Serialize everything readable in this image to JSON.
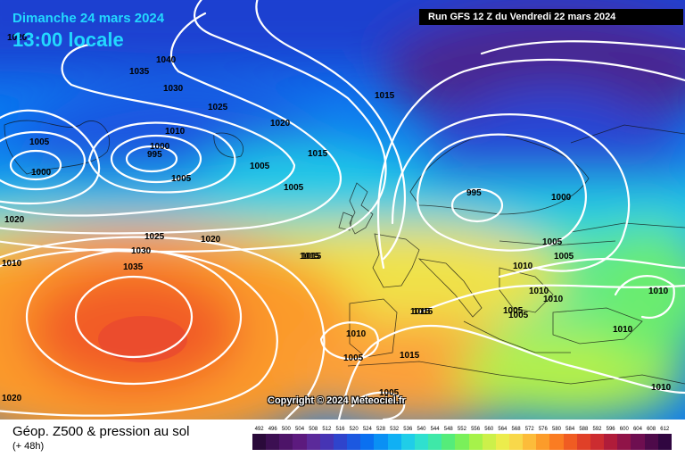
{
  "header": {
    "date": "Dimanche 24 mars 2024",
    "time": "13:00 locale",
    "run": "Run GFS 12 Z du Vendredi 22 mars 2024"
  },
  "copyright": "Copyright © 2024 Meteociel.fr",
  "footer": {
    "title": "Géop. Z500 & pression au sol",
    "subtitle": "(+ 48h)"
  },
  "scale": {
    "labels": [
      "492",
      "496",
      "500",
      "504",
      "508",
      "512",
      "516",
      "520",
      "524",
      "528",
      "532",
      "536",
      "540",
      "544",
      "548",
      "552",
      "556",
      "560",
      "564",
      "568",
      "572",
      "576",
      "580",
      "584",
      "588",
      "592",
      "596",
      "600",
      "604",
      "608",
      "612"
    ],
    "colors": [
      "#2a0a3a",
      "#3c0f52",
      "#4d1468",
      "#5c1a7e",
      "#5b2a9a",
      "#4634b4",
      "#2f44cc",
      "#1c58e0",
      "#0a70f0",
      "#0a90f4",
      "#10b0f4",
      "#20cde8",
      "#2fe0cf",
      "#3fe8a8",
      "#55ec7a",
      "#7af05a",
      "#a6f24a",
      "#ccf04a",
      "#ecec4c",
      "#f8d84a",
      "#fcbc3a",
      "#fc9c2a",
      "#fa7c22",
      "#f05c22",
      "#e04028",
      "#cc2c30",
      "#b01c3a",
      "#901448",
      "#6e0e50",
      "#4e0a4a",
      "#300640"
    ]
  },
  "isobars": [
    {
      "id": "p1",
      "value": "1040"
    },
    {
      "id": "p2",
      "value": "1035"
    },
    {
      "id": "p3",
      "value": "1030"
    },
    {
      "id": "p4",
      "value": "1025"
    },
    {
      "id": "p5",
      "value": "1020"
    },
    {
      "id": "p6",
      "value": "1010"
    },
    {
      "id": "p7",
      "value": "1000"
    },
    {
      "id": "p8",
      "value": "995"
    },
    {
      "id": "p9",
      "value": "1005"
    },
    {
      "id": "p10",
      "value": "1005"
    },
    {
      "id": "p11",
      "value": "1000"
    },
    {
      "id": "p12",
      "value": "1015"
    },
    {
      "id": "p13",
      "value": "1015"
    },
    {
      "id": "p14",
      "value": "1005"
    },
    {
      "id": "p15",
      "value": "1005"
    },
    {
      "id": "p16",
      "value": "1020"
    },
    {
      "id": "p17",
      "value": "1025"
    },
    {
      "id": "p18",
      "value": "1020"
    },
    {
      "id": "p19",
      "value": "1030"
    },
    {
      "id": "p20",
      "value": "1035"
    },
    {
      "id": "p21",
      "value": "1015"
    },
    {
      "id": "p22",
      "value": "1015"
    },
    {
      "id": "p23",
      "value": "995"
    },
    {
      "id": "p24",
      "value": "1000"
    },
    {
      "id": "p25",
      "value": "1005"
    },
    {
      "id": "p26",
      "value": "1005"
    },
    {
      "id": "p27",
      "value": "1010"
    },
    {
      "id": "p28",
      "value": "1010"
    },
    {
      "id": "p29",
      "value": "1010"
    },
    {
      "id": "p30",
      "value": "1005"
    },
    {
      "id": "p31",
      "value": "1005"
    },
    {
      "id": "p32",
      "value": "1010"
    },
    {
      "id": "p33",
      "value": "1010"
    },
    {
      "id": "p34",
      "value": "1015"
    },
    {
      "id": "p35",
      "value": "1010"
    },
    {
      "id": "p36",
      "value": "1005"
    },
    {
      "id": "p37",
      "value": "1015"
    },
    {
      "id": "p38",
      "value": "1005"
    },
    {
      "id": "p39",
      "value": "1010"
    },
    {
      "id": "p40",
      "value": "1020"
    },
    {
      "id": "p41",
      "value": "1010"
    },
    {
      "id": "p42",
      "value": "1020"
    },
    {
      "id": "p43",
      "value": "1015"
    }
  ]
}
